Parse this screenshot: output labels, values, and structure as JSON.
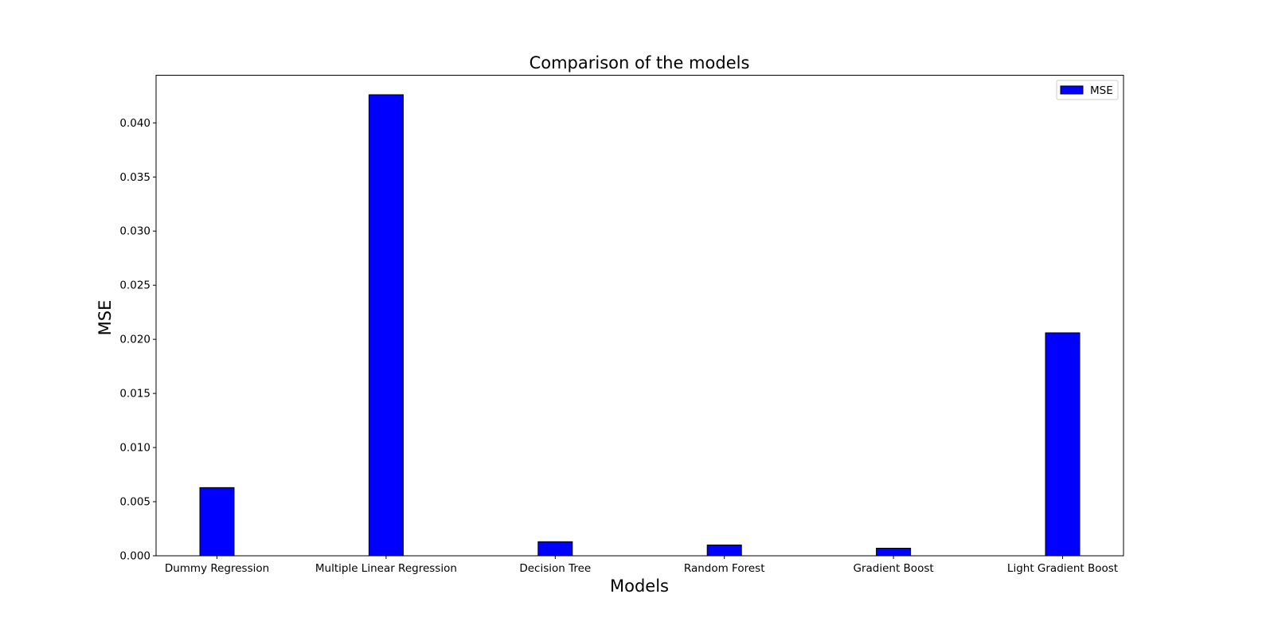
{
  "chart_data": {
    "type": "bar",
    "title": "Comparison of the models",
    "xlabel": "Models",
    "ylabel": "MSE",
    "categories": [
      "Dummy Regression",
      "Multiple Linear Regression",
      "Decision Tree",
      "Random Forest",
      "Gradient Boost",
      "Light Gradient Boost"
    ],
    "series": [
      {
        "name": "MSE",
        "color": "#0000ff",
        "values": [
          0.0063,
          0.0426,
          0.0013,
          0.001,
          0.0007,
          0.0206
        ]
      }
    ],
    "ylim": [
      0,
      0.0444
    ],
    "yticks": [
      0.0,
      0.005,
      0.01,
      0.015,
      0.02,
      0.025,
      0.03,
      0.035,
      0.04
    ],
    "ytick_labels": [
      "0.000",
      "0.005",
      "0.010",
      "0.015",
      "0.020",
      "0.025",
      "0.030",
      "0.035",
      "0.040"
    ],
    "grid": false,
    "legend_position": "top-right",
    "bar_edge_color": "#000000"
  }
}
